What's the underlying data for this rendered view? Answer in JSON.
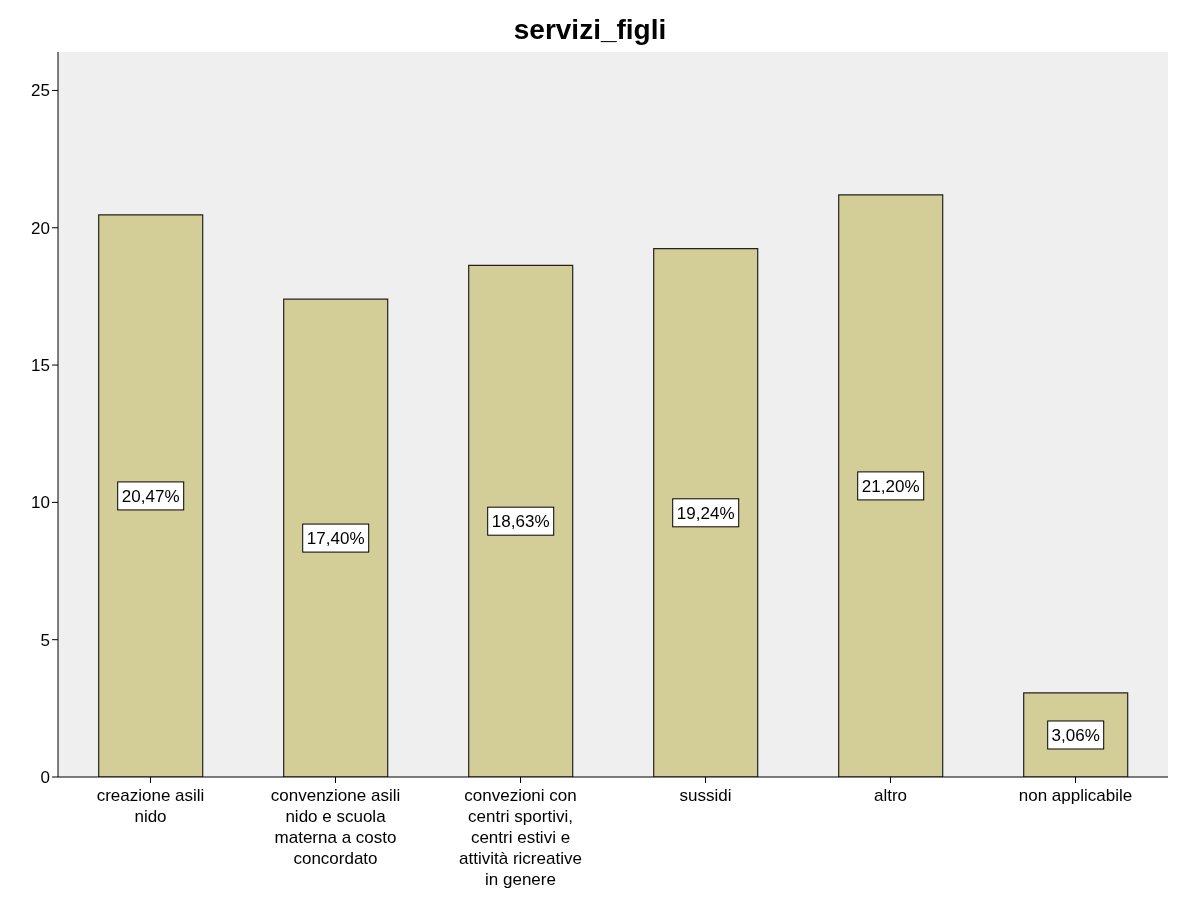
{
  "chart_data": {
    "type": "bar",
    "title": "servizi_figli",
    "categories": [
      "creazione asili nido",
      "convenzione asili nido e scuola materna a costo concordato",
      "convezioni con centri sportivi, centri estivi e attività ricreative in genere",
      "sussidi",
      "altro",
      "non applicabile"
    ],
    "values": [
      20.47,
      17.4,
      18.63,
      19.24,
      21.2,
      3.06
    ],
    "value_labels": [
      "20,47%",
      "17,40%",
      "18,63%",
      "19,24%",
      "21,20%",
      "3,06%"
    ],
    "color": "#d3ce97",
    "ylim": [
      0,
      26.4
    ],
    "yticks": [
      0,
      5,
      10,
      15,
      20,
      25
    ],
    "grid": false
  }
}
